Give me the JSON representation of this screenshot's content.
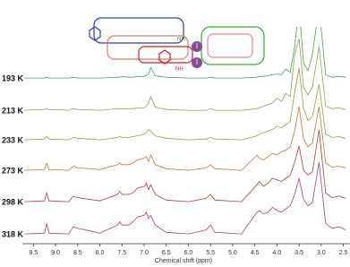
{
  "chart_data": {
    "type": "line",
    "xlabel": "Chemical shift (ppm)",
    "annotations": [
      "I",
      "I",
      "NH",
      "NH"
    ],
    "x": [
      9.7,
      9.25,
      9.2,
      9.15,
      8.7,
      8.6,
      8.5,
      8.0,
      7.6,
      7.55,
      7.5,
      7.35,
      7.25,
      7.15,
      7.0,
      6.95,
      6.9,
      6.85,
      6.75,
      6.5,
      6.0,
      5.6,
      5.5,
      5.4,
      4.8,
      4.45,
      4.4,
      4.3,
      4.2,
      4.1,
      4.0,
      3.9,
      3.8,
      3.7,
      3.6,
      3.5,
      3.4,
      3.3,
      3.2,
      3.05,
      2.9,
      2.75,
      2.6,
      2.45
    ],
    "series": [
      {
        "name": "193 K",
        "color": "#4e9e62",
        "values": [
          1,
          1,
          2,
          1,
          1,
          2,
          1,
          1,
          2,
          2,
          3,
          2,
          2,
          3,
          3,
          4,
          6,
          14,
          4,
          2,
          1,
          1,
          2,
          1,
          1,
          2,
          3,
          3,
          4,
          5,
          6,
          5,
          12,
          8,
          40,
          90,
          20,
          10,
          30,
          90,
          5,
          2,
          3,
          2
        ]
      },
      {
        "name": "213 K",
        "color": "#86a85a",
        "values": [
          1,
          2,
          3,
          2,
          1,
          3,
          2,
          1,
          3,
          3,
          3,
          3,
          3,
          4,
          4,
          6,
          10,
          18,
          5,
          2,
          1,
          1,
          3,
          1,
          1,
          3,
          4,
          6,
          8,
          10,
          16,
          12,
          22,
          18,
          70,
          90,
          30,
          20,
          30,
          80,
          6,
          3,
          4,
          2
        ]
      },
      {
        "name": "233 K",
        "color": "#9c9a48",
        "values": [
          1,
          2,
          5,
          2,
          1,
          4,
          3,
          1,
          4,
          5,
          4,
          4,
          5,
          6,
          8,
          10,
          14,
          12,
          6,
          3,
          1,
          2,
          4,
          2,
          1,
          6,
          8,
          10,
          12,
          14,
          18,
          16,
          20,
          24,
          60,
          90,
          40,
          25,
          30,
          70,
          8,
          4,
          5,
          3
        ]
      },
      {
        "name": "273 K",
        "color": "#c0783e",
        "values": [
          1,
          2,
          10,
          2,
          1,
          6,
          4,
          2,
          8,
          10,
          8,
          8,
          10,
          14,
          16,
          18,
          12,
          20,
          8,
          3,
          1,
          4,
          8,
          3,
          1,
          20,
          16,
          14,
          18,
          22,
          20,
          24,
          26,
          30,
          50,
          80,
          40,
          30,
          35,
          80,
          10,
          5,
          6,
          4
        ]
      },
      {
        "name": "298 K",
        "color": "#a83c3c",
        "values": [
          1,
          2,
          12,
          2,
          1,
          8,
          6,
          2,
          10,
          14,
          10,
          10,
          12,
          18,
          20,
          24,
          16,
          22,
          10,
          3,
          1,
          5,
          10,
          3,
          1,
          22,
          26,
          20,
          24,
          30,
          28,
          26,
          30,
          34,
          50,
          70,
          40,
          34,
          38,
          90,
          12,
          6,
          8,
          5
        ]
      },
      {
        "name": "318 K",
        "color": "#a2407e",
        "values": [
          1,
          2,
          14,
          2,
          1,
          10,
          8,
          2,
          12,
          16,
          12,
          12,
          16,
          22,
          24,
          28,
          20,
          24,
          12,
          3,
          1,
          6,
          12,
          3,
          1,
          28,
          30,
          26,
          28,
          34,
          30,
          28,
          32,
          36,
          50,
          70,
          44,
          36,
          40,
          90,
          14,
          8,
          10,
          6
        ]
      }
    ],
    "xlim": [
      9.75,
      2.35
    ],
    "xticks": [
      9.5,
      {
        "value": 9,
        "label": "9.0"
      },
      8.5,
      {
        "value": 8,
        "label": "8.0"
      },
      7.5,
      {
        "value": 7,
        "label": "7.0"
      },
      6.5,
      {
        "value": 6,
        "label": "6.0"
      },
      5.5,
      {
        "value": 5,
        "label": "5.0"
      },
      4.5,
      {
        "value": 4,
        "label": "4.0"
      },
      3.5,
      {
        "value": 3,
        "label": "3.0"
      },
      2.5
    ]
  }
}
